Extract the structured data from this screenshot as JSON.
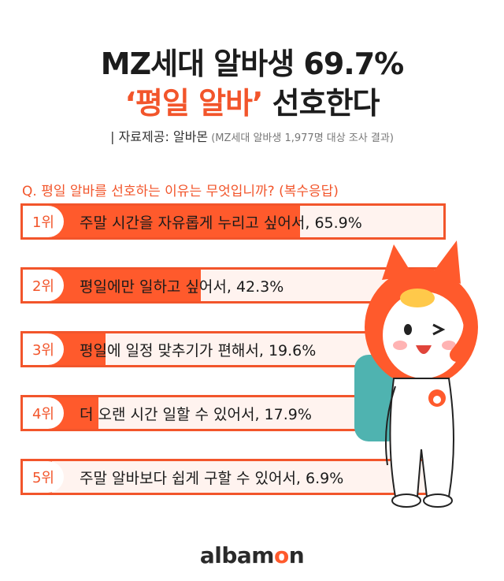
{
  "header": {
    "title_line1": "MZ세대 알바생 69.7%",
    "title_line2_accent": "‘평일 알바’",
    "title_line2_rest": " 선호한다",
    "source_label": "| 자료제공: 알바몬",
    "source_note": " (MZ세대 알바생 1,977명 대상 조사 결과)"
  },
  "question": "Q. 평일 알바를 선호하는 이유는 무엇입니까? (복수응답)",
  "chart_data": {
    "type": "bar",
    "categories": [
      "주말 시간을 자유롭게 누리고 싶어서",
      "평일에만 일하고 싶어서",
      "평일에 일정 맞추기가 편해서",
      "더 오랜 시간 일할 수 있어서",
      "주말 알바보다 쉽게 구할 수 있어서"
    ],
    "ranks": [
      "1위",
      "2위",
      "3위",
      "4위",
      "5위"
    ],
    "labels": [
      "주말 시간을 자유롭게 누리고 싶어서, 65.9%",
      "평일에만 일하고 싶어서, 42.3%",
      "평일에 일정 맞추기가 편해서, 19.6%",
      "더 오랜 시간 일할 수 있어서, 17.9%",
      "주말 알바보다 쉽게 구할 수 있어서, 6.9%"
    ],
    "values": [
      65.9,
      42.3,
      19.6,
      17.9,
      6.9
    ],
    "unit": "%"
  },
  "brand": {
    "logo_pre": "albam",
    "logo_o": "o",
    "logo_post": "n"
  },
  "colors": {
    "accent": "#f2552b",
    "fill": "#ff5a2c",
    "track": "#fff3ef"
  }
}
